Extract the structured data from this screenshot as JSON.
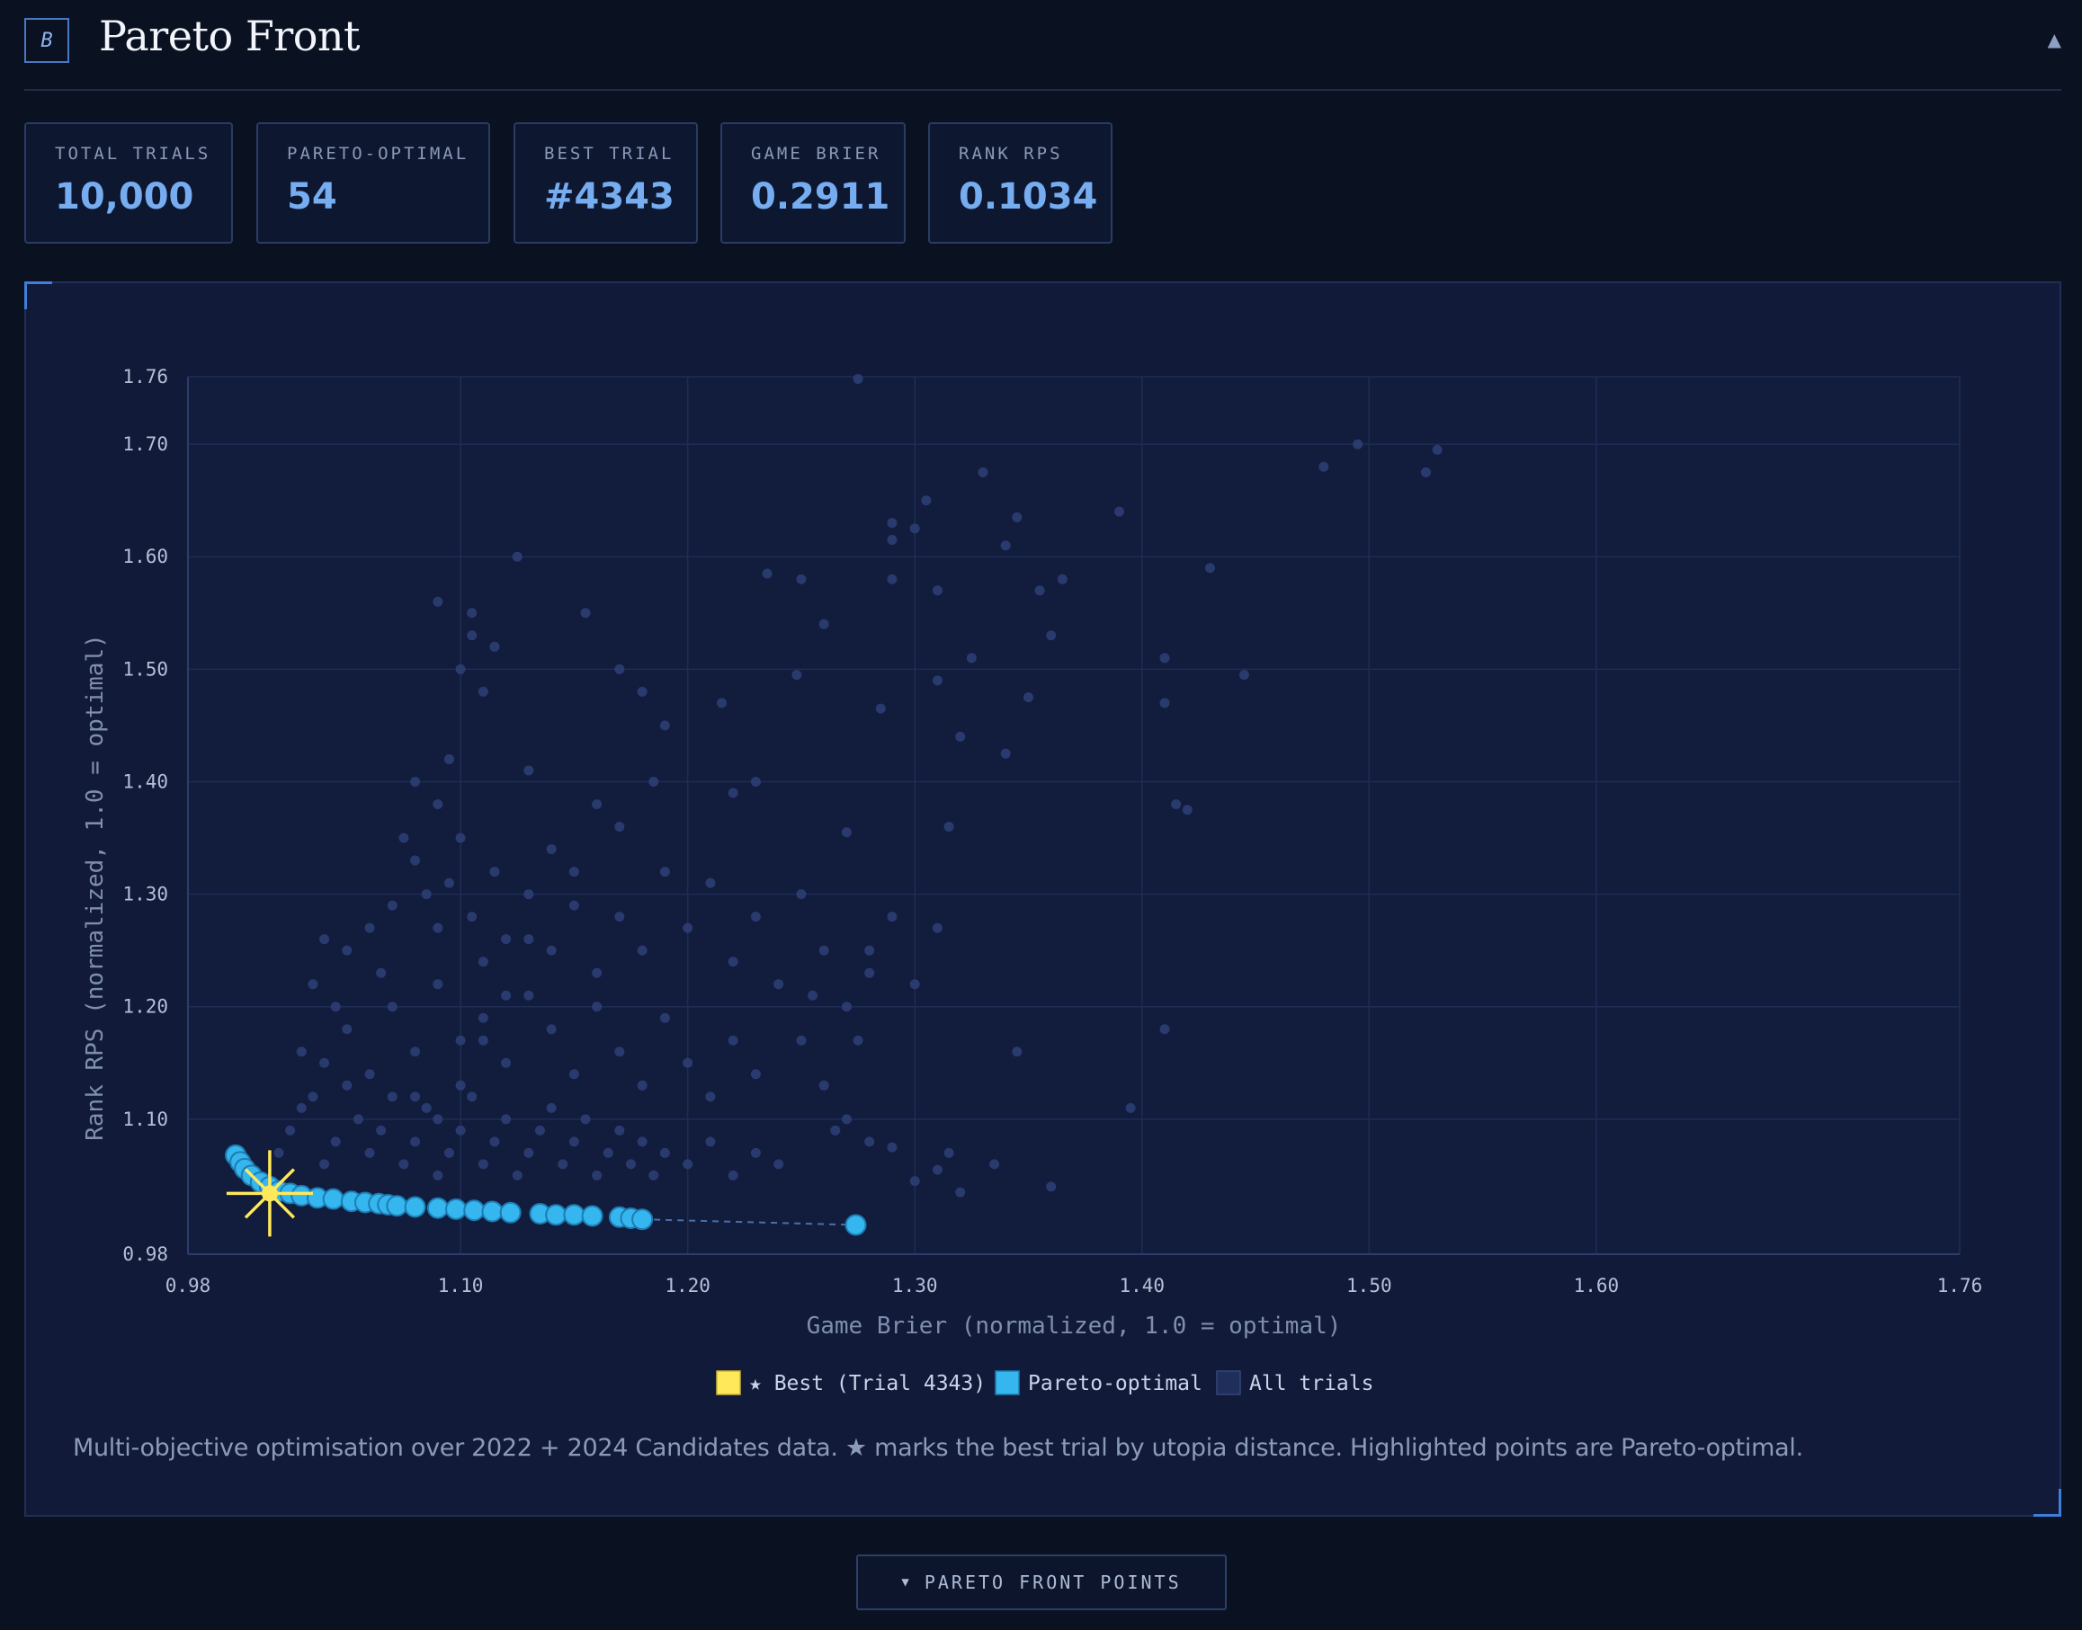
{
  "header": {
    "badge": "B",
    "title": "Pareto Front",
    "collapse_glyph": "▲"
  },
  "stats": [
    {
      "label": "TOTAL TRIALS",
      "value": "10,000"
    },
    {
      "label": "PARETO-OPTIMAL",
      "value": "54"
    },
    {
      "label": "BEST TRIAL",
      "value": "#4343"
    },
    {
      "label": "GAME BRIER",
      "value": "0.2911"
    },
    {
      "label": "RANK RPS",
      "value": "0.1034"
    }
  ],
  "caption": "Multi-objective optimisation over 2022 + 2024 Candidates data. ★ marks the best trial by utopia distance. Highlighted points are Pareto-optimal.",
  "expand_button": {
    "label": "PARETO FRONT POINTS",
    "chevron": "▼"
  },
  "colors": {
    "best": "#ffe95a",
    "pareto": "#35b6ee",
    "all_trials": "#2c3f73",
    "accent": "#76acf0"
  },
  "chart_data": {
    "type": "scatter",
    "xlabel": "Game Brier (normalized, 1.0 = optimal)",
    "ylabel": "Rank RPS (normalized, 1.0 = optimal)",
    "xlim": [
      0.98,
      1.76
    ],
    "ylim": [
      0.98,
      1.76
    ],
    "x_ticks": [
      0.98,
      1.1,
      1.2,
      1.3,
      1.4,
      1.5,
      1.6,
      1.76
    ],
    "y_ticks": [
      0.98,
      1.1,
      1.2,
      1.3,
      1.4,
      1.5,
      1.6,
      1.7,
      1.76
    ],
    "x_tick_labels": [
      "0.98",
      "1.10",
      "1.20",
      "1.30",
      "1.40",
      "1.50",
      "1.60",
      "1.76"
    ],
    "y_tick_labels": [
      "0.98",
      "1.10",
      "1.20",
      "1.30",
      "1.40",
      "1.50",
      "1.60",
      "1.70",
      "1.76"
    ],
    "grid": true,
    "legend_position": "bottom-center",
    "legend": [
      "★ Best (Trial 4343)",
      "Pareto-optimal",
      "All trials"
    ],
    "series": [
      {
        "name": "All trials",
        "points": [
          [
            1.02,
            1.07
          ],
          [
            1.025,
            1.09
          ],
          [
            1.03,
            1.11
          ],
          [
            1.035,
            1.12
          ],
          [
            1.04,
            1.06
          ],
          [
            1.045,
            1.08
          ],
          [
            1.05,
            1.13
          ],
          [
            1.055,
            1.1
          ],
          [
            1.06,
            1.07
          ],
          [
            1.065,
            1.09
          ],
          [
            1.07,
            1.12
          ],
          [
            1.075,
            1.06
          ],
          [
            1.08,
            1.08
          ],
          [
            1.085,
            1.11
          ],
          [
            1.09,
            1.05
          ],
          [
            1.095,
            1.07
          ],
          [
            1.1,
            1.09
          ],
          [
            1.105,
            1.12
          ],
          [
            1.11,
            1.06
          ],
          [
            1.115,
            1.08
          ],
          [
            1.12,
            1.1
          ],
          [
            1.125,
            1.05
          ],
          [
            1.13,
            1.07
          ],
          [
            1.135,
            1.09
          ],
          [
            1.14,
            1.11
          ],
          [
            1.145,
            1.06
          ],
          [
            1.15,
            1.08
          ],
          [
            1.155,
            1.1
          ],
          [
            1.16,
            1.05
          ],
          [
            1.165,
            1.07
          ],
          [
            1.17,
            1.09
          ],
          [
            1.175,
            1.06
          ],
          [
            1.18,
            1.08
          ],
          [
            1.185,
            1.05
          ],
          [
            1.19,
            1.07
          ],
          [
            1.2,
            1.06
          ],
          [
            1.21,
            1.08
          ],
          [
            1.22,
            1.05
          ],
          [
            1.23,
            1.07
          ],
          [
            1.24,
            1.06
          ],
          [
            1.04,
            1.15
          ],
          [
            1.05,
            1.18
          ],
          [
            1.06,
            1.14
          ],
          [
            1.07,
            1.2
          ],
          [
            1.08,
            1.16
          ],
          [
            1.09,
            1.22
          ],
          [
            1.1,
            1.17
          ],
          [
            1.11,
            1.19
          ],
          [
            1.12,
            1.15
          ],
          [
            1.13,
            1.21
          ],
          [
            1.14,
            1.18
          ],
          [
            1.15,
            1.14
          ],
          [
            1.16,
            1.2
          ],
          [
            1.17,
            1.16
          ],
          [
            1.18,
            1.13
          ],
          [
            1.19,
            1.19
          ],
          [
            1.2,
            1.15
          ],
          [
            1.21,
            1.12
          ],
          [
            1.22,
            1.17
          ],
          [
            1.23,
            1.14
          ],
          [
            1.03,
            1.16
          ],
          [
            1.035,
            1.22
          ],
          [
            1.04,
            1.26
          ],
          [
            1.045,
            1.2
          ],
          [
            1.05,
            1.25
          ],
          [
            1.06,
            1.27
          ],
          [
            1.065,
            1.23
          ],
          [
            1.07,
            1.29
          ],
          [
            1.08,
            1.33
          ],
          [
            1.085,
            1.3
          ],
          [
            1.09,
            1.27
          ],
          [
            1.095,
            1.31
          ],
          [
            1.1,
            1.35
          ],
          [
            1.105,
            1.28
          ],
          [
            1.11,
            1.24
          ],
          [
            1.115,
            1.32
          ],
          [
            1.12,
            1.26
          ],
          [
            1.13,
            1.3
          ],
          [
            1.14,
            1.25
          ],
          [
            1.15,
            1.29
          ],
          [
            1.16,
            1.23
          ],
          [
            1.17,
            1.28
          ],
          [
            1.18,
            1.25
          ],
          [
            1.19,
            1.32
          ],
          [
            1.2,
            1.27
          ],
          [
            1.21,
            1.31
          ],
          [
            1.22,
            1.24
          ],
          [
            1.23,
            1.28
          ],
          [
            1.24,
            1.22
          ],
          [
            1.25,
            1.3
          ],
          [
            1.26,
            1.25
          ],
          [
            1.27,
            1.2
          ],
          [
            1.28,
            1.23
          ],
          [
            1.29,
            1.28
          ],
          [
            1.3,
            1.22
          ],
          [
            1.31,
            1.27
          ],
          [
            1.25,
            1.17
          ],
          [
            1.26,
            1.13
          ],
          [
            1.27,
            1.1
          ],
          [
            1.28,
            1.08
          ],
          [
            1.075,
            1.35
          ],
          [
            1.08,
            1.4
          ],
          [
            1.09,
            1.38
          ],
          [
            1.095,
            1.42
          ],
          [
            1.1,
            1.5
          ],
          [
            1.105,
            1.53
          ],
          [
            1.11,
            1.48
          ],
          [
            1.115,
            1.52
          ],
          [
            1.13,
            1.41
          ],
          [
            1.09,
            1.56
          ],
          [
            1.105,
            1.55
          ],
          [
            1.125,
            1.6
          ],
          [
            1.155,
            1.55
          ],
          [
            1.17,
            1.5
          ],
          [
            1.18,
            1.48
          ],
          [
            1.185,
            1.4
          ],
          [
            1.19,
            1.45
          ],
          [
            1.215,
            1.47
          ],
          [
            1.22,
            1.39
          ],
          [
            1.23,
            1.4
          ],
          [
            1.235,
            1.585
          ],
          [
            1.248,
            1.495
          ],
          [
            1.25,
            1.58
          ],
          [
            1.26,
            1.54
          ],
          [
            1.27,
            1.355
          ],
          [
            1.275,
            1.758
          ],
          [
            1.285,
            1.465
          ],
          [
            1.29,
            1.63
          ],
          [
            1.29,
            1.58
          ],
          [
            1.29,
            1.615
          ],
          [
            1.3,
            1.625
          ],
          [
            1.305,
            1.65
          ],
          [
            1.31,
            1.57
          ],
          [
            1.31,
            1.49
          ],
          [
            1.315,
            1.36
          ],
          [
            1.32,
            1.44
          ],
          [
            1.325,
            1.51
          ],
          [
            1.33,
            1.675
          ],
          [
            1.34,
            1.61
          ],
          [
            1.345,
            1.635
          ],
          [
            1.34,
            1.425
          ],
          [
            1.35,
            1.475
          ],
          [
            1.355,
            1.57
          ],
          [
            1.36,
            1.53
          ],
          [
            1.365,
            1.58
          ],
          [
            1.39,
            1.64
          ],
          [
            1.41,
            1.47
          ],
          [
            1.41,
            1.51
          ],
          [
            1.415,
            1.38
          ],
          [
            1.42,
            1.375
          ],
          [
            1.43,
            1.59
          ],
          [
            1.445,
            1.495
          ],
          [
            1.48,
            1.68
          ],
          [
            1.495,
            1.7
          ],
          [
            1.525,
            1.675
          ],
          [
            1.53,
            1.695
          ],
          [
            1.41,
            1.18
          ],
          [
            1.395,
            1.11
          ],
          [
            1.345,
            1.16
          ],
          [
            1.36,
            1.04
          ],
          [
            1.335,
            1.06
          ],
          [
            1.31,
            1.055
          ],
          [
            1.3,
            1.045
          ],
          [
            1.315,
            1.07
          ],
          [
            1.29,
            1.075
          ],
          [
            1.32,
            1.035
          ],
          [
            1.265,
            1.09
          ],
          [
            1.275,
            1.17
          ],
          [
            1.255,
            1.21
          ],
          [
            1.28,
            1.25
          ],
          [
            1.16,
            1.38
          ],
          [
            1.17,
            1.36
          ],
          [
            1.15,
            1.32
          ],
          [
            1.14,
            1.34
          ],
          [
            1.13,
            1.26
          ],
          [
            1.12,
            1.21
          ],
          [
            1.11,
            1.17
          ],
          [
            1.1,
            1.13
          ],
          [
            1.09,
            1.1
          ],
          [
            1.08,
            1.12
          ]
        ]
      },
      {
        "name": "Pareto-optimal",
        "points": [
          [
            1.001,
            1.068
          ],
          [
            1.003,
            1.062
          ],
          [
            1.005,
            1.056
          ],
          [
            1.008,
            1.05
          ],
          [
            1.012,
            1.044
          ],
          [
            1.016,
            1.04
          ],
          [
            1.02,
            1.036
          ],
          [
            1.025,
            1.034
          ],
          [
            1.03,
            1.032
          ],
          [
            1.037,
            1.03
          ],
          [
            1.044,
            1.029
          ],
          [
            1.052,
            1.027
          ],
          [
            1.058,
            1.026
          ],
          [
            1.064,
            1.025
          ],
          [
            1.068,
            1.024
          ],
          [
            1.072,
            1.023
          ],
          [
            1.08,
            1.022
          ],
          [
            1.09,
            1.021
          ],
          [
            1.098,
            1.02
          ],
          [
            1.106,
            1.019
          ],
          [
            1.114,
            1.018
          ],
          [
            1.122,
            1.017
          ],
          [
            1.135,
            1.016
          ],
          [
            1.142,
            1.015
          ],
          [
            1.15,
            1.015
          ],
          [
            1.158,
            1.014
          ],
          [
            1.17,
            1.013
          ],
          [
            1.175,
            1.012
          ],
          [
            1.18,
            1.011
          ],
          [
            1.274,
            1.006
          ]
        ]
      },
      {
        "name": "★ Best (Trial 4343)",
        "points": [
          [
            1.016,
            1.034
          ]
        ]
      }
    ]
  }
}
